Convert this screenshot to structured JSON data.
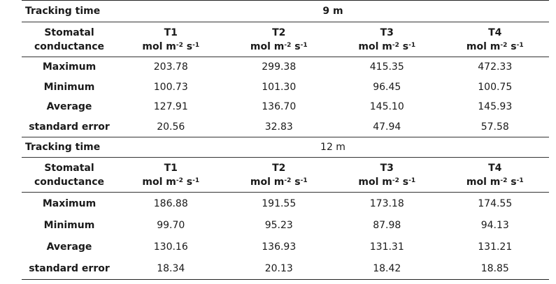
{
  "blocks": [
    {
      "tracking_label": "Tracking time",
      "time_value": "9 m",
      "header": {
        "row_label_line1": "Stomatal",
        "row_label_line2": "conductance",
        "columns": [
          {
            "name": "T1",
            "unit_a": "mol m",
            "unit_exp1": "-2",
            "unit_b": " s",
            "unit_exp2": "-1"
          },
          {
            "name": "T2",
            "unit_a": "mol m",
            "unit_exp1": "-2",
            "unit_b": " s",
            "unit_exp2": "-1"
          },
          {
            "name": "T3",
            "unit_a": "mol m",
            "unit_exp1": "-2",
            "unit_b": " s",
            "unit_exp2": "-1"
          },
          {
            "name": "T4",
            "unit_a": "mol m",
            "unit_exp1": "-2",
            "unit_b": " s",
            "unit_exp2": "-1"
          }
        ]
      },
      "rows": [
        {
          "label": "Maximum",
          "values": [
            "203.78",
            "299.38",
            "415.35",
            "472.33"
          ]
        },
        {
          "label": "Minimum",
          "values": [
            "100.73",
            "101.30",
            "96.45",
            "100.75"
          ]
        },
        {
          "label": "Average",
          "values": [
            "127.91",
            "136.70",
            "145.10",
            "145.93"
          ]
        },
        {
          "label": "standard error",
          "values": [
            "20.56",
            "32.83",
            "47.94",
            "57.58"
          ]
        }
      ]
    },
    {
      "tracking_label": "Tracking time",
      "time_value": "12 m",
      "header": {
        "row_label_line1": "Stomatal",
        "row_label_line2": "conductance",
        "columns": [
          {
            "name": "T1",
            "unit_a": "mol m",
            "unit_exp1": "-2",
            "unit_b": " s",
            "unit_exp2": "-1"
          },
          {
            "name": "T2",
            "unit_a": "mol m",
            "unit_exp1": "-2",
            "unit_b": " s",
            "unit_exp2": "-1"
          },
          {
            "name": "T3",
            "unit_a": "mol m",
            "unit_exp1": "-2",
            "unit_b": " s",
            "unit_exp2": "-1"
          },
          {
            "name": "T4",
            "unit_a": "mol m",
            "unit_exp1": "-2",
            "unit_b": " s",
            "unit_exp2": "-1"
          }
        ]
      },
      "rows": [
        {
          "label": "Maximum",
          "values": [
            "186.88",
            "191.55",
            "173.18",
            "174.55"
          ]
        },
        {
          "label": "Minimum",
          "values": [
            "99.70",
            "95.23",
            "87.98",
            "94.13"
          ]
        },
        {
          "label": "Average",
          "values": [
            "130.16",
            "136.93",
            "131.31",
            "131.21"
          ]
        },
        {
          "label": "standard error",
          "values": [
            "18.34",
            "20.13",
            "18.42",
            "18.85"
          ]
        }
      ]
    }
  ]
}
